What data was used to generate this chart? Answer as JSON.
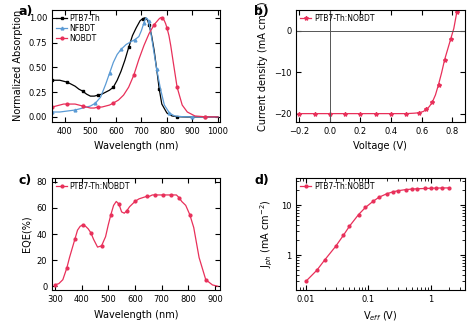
{
  "panel_a": {
    "xlabel": "Wavelength (nm)",
    "ylabel": "Normalized Absorption",
    "xlim": [
      350,
      1010
    ],
    "ylim": [
      -0.05,
      1.08
    ],
    "xticks": [
      400,
      500,
      600,
      700,
      800,
      900,
      1000
    ],
    "yticks": [
      0.0,
      0.25,
      0.5,
      0.75,
      1.0
    ],
    "series": {
      "PTB7-Th": {
        "color": "black",
        "marker": "s",
        "x": [
          350,
          365,
          380,
          395,
          410,
          425,
          440,
          455,
          470,
          485,
          500,
          515,
          530,
          545,
          560,
          575,
          590,
          605,
          620,
          635,
          650,
          665,
          680,
          695,
          705,
          715,
          720,
          725,
          730,
          740,
          750,
          760,
          770,
          780,
          800,
          820,
          840,
          860,
          880,
          910,
          950,
          1000
        ],
        "y": [
          0.37,
          0.37,
          0.37,
          0.36,
          0.35,
          0.33,
          0.31,
          0.28,
          0.26,
          0.23,
          0.21,
          0.21,
          0.22,
          0.23,
          0.25,
          0.27,
          0.3,
          0.37,
          0.46,
          0.57,
          0.7,
          0.82,
          0.9,
          0.97,
          0.99,
          1.0,
          0.99,
          0.97,
          0.93,
          0.82,
          0.67,
          0.48,
          0.28,
          0.13,
          0.04,
          0.01,
          0.003,
          0.001,
          0.0,
          0.0,
          0.0,
          0.0
        ]
      },
      "NFBDT": {
        "color": "#5b9bd5",
        "marker": "^",
        "x": [
          350,
          380,
          410,
          440,
          470,
          500,
          520,
          540,
          560,
          575,
          590,
          605,
          620,
          640,
          660,
          675,
          690,
          700,
          710,
          718,
          723,
          728,
          735,
          745,
          760,
          775,
          790,
          810,
          830,
          860,
          900,
          950,
          1000
        ],
        "y": [
          0.05,
          0.05,
          0.06,
          0.07,
          0.09,
          0.11,
          0.14,
          0.2,
          0.33,
          0.44,
          0.55,
          0.63,
          0.68,
          0.73,
          0.76,
          0.78,
          0.81,
          0.87,
          0.95,
          1.0,
          0.99,
          0.97,
          0.88,
          0.72,
          0.48,
          0.28,
          0.12,
          0.04,
          0.01,
          0.003,
          0.001,
          0.0,
          0.0
        ]
      },
      "NOBDT": {
        "color": "#e8305a",
        "marker": "o",
        "x": [
          350,
          365,
          380,
          395,
          410,
          425,
          440,
          455,
          470,
          485,
          500,
          515,
          530,
          545,
          560,
          575,
          590,
          610,
          630,
          650,
          670,
          690,
          710,
          730,
          750,
          760,
          770,
          775,
          780,
          785,
          790,
          795,
          800,
          808,
          815,
          825,
          840,
          860,
          880,
          910,
          950,
          1000
        ],
        "y": [
          0.1,
          0.11,
          0.12,
          0.13,
          0.13,
          0.13,
          0.13,
          0.12,
          0.11,
          0.1,
          0.09,
          0.09,
          0.1,
          0.1,
          0.11,
          0.12,
          0.14,
          0.17,
          0.22,
          0.3,
          0.42,
          0.58,
          0.72,
          0.84,
          0.93,
          0.96,
          0.99,
          1.0,
          1.0,
          0.99,
          0.97,
          0.94,
          0.9,
          0.82,
          0.72,
          0.55,
          0.3,
          0.12,
          0.05,
          0.01,
          0.002,
          0.0
        ]
      }
    }
  },
  "panel_b": {
    "xlabel": "Voltage (V)",
    "ylabel": "Current density (mA cm⁻²)",
    "xlim": [
      -0.22,
      0.88
    ],
    "ylim": [
      -22,
      5
    ],
    "xticks": [
      -0.2,
      0.0,
      0.2,
      0.4,
      0.6,
      0.8
    ],
    "yticks": [
      -20,
      -10,
      0
    ],
    "legend": "PTB7-Th:NOBDT",
    "color": "#e8305a",
    "marker": "*",
    "markersize": 3,
    "x": [
      -0.2,
      -0.15,
      -0.1,
      -0.05,
      0.0,
      0.05,
      0.1,
      0.15,
      0.2,
      0.25,
      0.3,
      0.35,
      0.4,
      0.45,
      0.5,
      0.55,
      0.58,
      0.61,
      0.63,
      0.65,
      0.67,
      0.69,
      0.71,
      0.73,
      0.75,
      0.77,
      0.79,
      0.81,
      0.83,
      0.85,
      0.87
    ],
    "y": [
      -20.0,
      -20.0,
      -20.0,
      -20.0,
      -20.0,
      -20.0,
      -20.0,
      -20.0,
      -20.0,
      -20.0,
      -20.0,
      -20.0,
      -20.0,
      -20.0,
      -20.0,
      -19.9,
      -19.8,
      -19.5,
      -19.0,
      -18.3,
      -17.2,
      -15.5,
      -13.0,
      -10.2,
      -7.0,
      -4.5,
      -2.0,
      0.5,
      4.5,
      11.0,
      20.0
    ]
  },
  "panel_c": {
    "xlabel": "Wavelength (nm)",
    "ylabel": "EQE(%)",
    "xlim": [
      290,
      920
    ],
    "ylim": [
      -3,
      83
    ],
    "xticks": [
      300,
      400,
      500,
      600,
      700,
      800,
      900
    ],
    "yticks": [
      0,
      20,
      40,
      60,
      80
    ],
    "legend": "PTB7-Th:NOBDT",
    "color": "#e8305a",
    "marker": "o",
    "markersize": 2,
    "x": [
      300,
      315,
      330,
      345,
      355,
      365,
      375,
      385,
      395,
      405,
      415,
      425,
      435,
      445,
      460,
      475,
      490,
      500,
      510,
      520,
      530,
      540,
      550,
      560,
      570,
      580,
      590,
      600,
      615,
      630,
      645,
      655,
      665,
      675,
      685,
      695,
      705,
      715,
      725,
      735,
      745,
      755,
      765,
      775,
      790,
      805,
      820,
      840,
      865,
      890,
      910
    ],
    "y": [
      1,
      2,
      5,
      14,
      22,
      29,
      36,
      43,
      46,
      47,
      46,
      44,
      41,
      36,
      30,
      31,
      38,
      47,
      55,
      62,
      65,
      63,
      57,
      56,
      58,
      61,
      63,
      65,
      67,
      68,
      69,
      69,
      70,
      70,
      70,
      70,
      70,
      70,
      70,
      70,
      70,
      70,
      68,
      65,
      62,
      55,
      45,
      22,
      5,
      1,
      0
    ]
  },
  "panel_d": {
    "xlabel": "V$_{eff}$ (V)",
    "ylabel": "J$_{ph}$ (mA cm$^{-2}$)",
    "xlim_log": [
      0.007,
      3.5
    ],
    "ylim_log": [
      0.2,
      35
    ],
    "yticks": [
      1,
      10
    ],
    "legend": "PTB7-Th:NOBDT",
    "color": "#e8305a",
    "marker": "o",
    "markersize": 2,
    "x": [
      0.01,
      0.015,
      0.02,
      0.03,
      0.04,
      0.05,
      0.07,
      0.09,
      0.12,
      0.15,
      0.2,
      0.25,
      0.3,
      0.4,
      0.5,
      0.6,
      0.8,
      1.0,
      1.2,
      1.5,
      2.0
    ],
    "y": [
      0.3,
      0.5,
      0.8,
      1.5,
      2.5,
      3.8,
      6.5,
      9.0,
      12.0,
      14.5,
      17.0,
      18.5,
      19.5,
      20.5,
      21.0,
      21.3,
      21.6,
      21.8,
      22.0,
      22.1,
      22.2
    ]
  },
  "bg": "white",
  "lw": 0.9,
  "label_fs": 7,
  "tick_fs": 6,
  "legend_fs": 5.5
}
